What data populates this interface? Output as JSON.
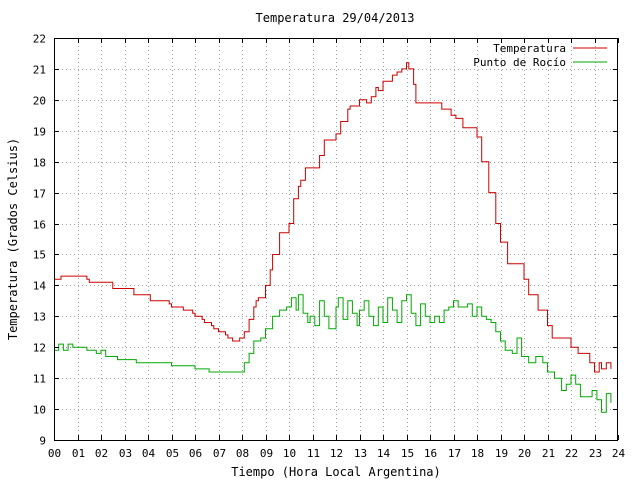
{
  "chart_data": {
    "type": "line",
    "title": "Temperatura 29/04/2013",
    "xlabel": "Tiempo (Hora Local Argentina)",
    "ylabel": "Temperatura (Grados Celsius)",
    "xlim": [
      0,
      24
    ],
    "ylim": [
      9,
      22
    ],
    "x_tick_labels": [
      "00",
      "01",
      "02",
      "03",
      "04",
      "05",
      "06",
      "07",
      "08",
      "09",
      "10",
      "11",
      "12",
      "13",
      "14",
      "15",
      "16",
      "17",
      "18",
      "19",
      "20",
      "21",
      "22",
      "23",
      "24"
    ],
    "y_ticks": [
      9,
      10,
      11,
      12,
      13,
      14,
      15,
      16,
      17,
      18,
      19,
      20,
      21,
      22
    ],
    "grid": true,
    "legend_position": "top-right",
    "series": [
      {
        "name": "Temperatura",
        "color": "#cc0000",
        "x": [
          0,
          0.3,
          0.35,
          1.4,
          1.5,
          2.4,
          2.5,
          3.3,
          3.4,
          4.1,
          4.2,
          4.9,
          5.0,
          5.4,
          5.5,
          5.9,
          6.0,
          6.3,
          6.4,
          6.7,
          6.8,
          7.0,
          7.1,
          7.3,
          7.4,
          7.5,
          7.6,
          7.9,
          8.0,
          8.1,
          8.3,
          8.5,
          8.6,
          8.7,
          9.0,
          9.2,
          9.3,
          9.6,
          9.8,
          10.0,
          10.2,
          10.4,
          10.5,
          10.7,
          11.0,
          11.1,
          11.3,
          11.5,
          11.6,
          11.9,
          12.0,
          12.2,
          12.3,
          12.5,
          12.6,
          12.9,
          13.0,
          13.3,
          13.5,
          13.7,
          13.8,
          14.0,
          14.2,
          14.4,
          14.5,
          14.6,
          14.8,
          15.0,
          15.1,
          15.3,
          15.4,
          15.5,
          15.9,
          16.0,
          16.4,
          16.5,
          16.9,
          17.1,
          17.4,
          17.5,
          17.8,
          18.0,
          18.2,
          18.5,
          18.8,
          19.0,
          19.3,
          19.5,
          19.6,
          20.0,
          20.2,
          20.5,
          20.6,
          21.0,
          21.2,
          21.5,
          21.7,
          22.0,
          22.3,
          22.4,
          22.8,
          23.0,
          23.2,
          23.3,
          23.5,
          23.7
        ],
        "values": [
          14.2,
          14.3,
          14.3,
          14.2,
          14.1,
          14.1,
          13.9,
          13.9,
          13.7,
          13.5,
          13.5,
          13.4,
          13.3,
          13.3,
          13.2,
          13.1,
          13.0,
          12.9,
          12.8,
          12.7,
          12.6,
          12.5,
          12.5,
          12.4,
          12.3,
          12.3,
          12.2,
          12.3,
          12.3,
          12.5,
          12.9,
          13.3,
          13.5,
          13.6,
          14.0,
          14.5,
          15.0,
          15.7,
          15.7,
          16.0,
          16.8,
          17.2,
          17.4,
          17.8,
          17.8,
          17.8,
          18.2,
          18.7,
          18.7,
          18.7,
          18.9,
          19.3,
          19.3,
          19.7,
          19.8,
          19.8,
          20.0,
          19.9,
          20.1,
          20.4,
          20.3,
          20.6,
          20.6,
          20.8,
          20.8,
          20.9,
          21.0,
          21.2,
          21.0,
          20.5,
          19.9,
          19.9,
          19.9,
          19.9,
          19.9,
          19.7,
          19.5,
          19.4,
          19.1,
          19.1,
          19.1,
          18.8,
          18.0,
          17.0,
          16.0,
          15.4,
          14.7,
          14.7,
          14.7,
          14.2,
          13.7,
          13.7,
          13.2,
          12.7,
          12.3,
          12.3,
          12.3,
          12.0,
          11.8,
          11.8,
          11.5,
          11.2,
          11.5,
          11.3,
          11.5,
          11.3
        ]
      },
      {
        "name": "Punto de Rocío",
        "color": "#00aa00",
        "x": [
          0,
          0.2,
          0.4,
          0.6,
          0.8,
          1.0,
          1.4,
          1.6,
          1.8,
          2.0,
          2.2,
          2.5,
          2.7,
          3.0,
          3.3,
          3.5,
          4.0,
          4.4,
          4.8,
          5.0,
          5.5,
          6.0,
          6.3,
          6.6,
          7.0,
          7.2,
          7.5,
          7.9,
          8.1,
          8.3,
          8.5,
          8.8,
          9.0,
          9.3,
          9.6,
          9.9,
          10.1,
          10.3,
          10.4,
          10.6,
          10.8,
          10.9,
          11.1,
          11.3,
          11.5,
          11.7,
          12.0,
          12.1,
          12.3,
          12.5,
          12.7,
          12.9,
          13.0,
          13.2,
          13.4,
          13.6,
          13.8,
          14.0,
          14.2,
          14.4,
          14.6,
          14.8,
          15.0,
          15.2,
          15.4,
          15.6,
          15.8,
          16.0,
          16.2,
          16.4,
          16.6,
          16.8,
          17.0,
          17.2,
          17.4,
          17.6,
          17.8,
          18.0,
          18.2,
          18.4,
          18.6,
          18.8,
          19.0,
          19.2,
          19.5,
          19.7,
          19.9,
          20.2,
          20.5,
          20.8,
          21.0,
          21.3,
          21.6,
          21.8,
          22.0,
          22.2,
          22.4,
          22.6,
          22.9,
          23.1,
          23.3,
          23.5,
          23.7
        ],
        "values": [
          11.9,
          12.1,
          11.9,
          12.1,
          12.0,
          12.0,
          11.9,
          11.9,
          11.8,
          11.9,
          11.7,
          11.7,
          11.6,
          11.6,
          11.6,
          11.5,
          11.5,
          11.5,
          11.5,
          11.4,
          11.4,
          11.3,
          11.3,
          11.2,
          11.2,
          11.2,
          11.2,
          11.2,
          11.5,
          11.8,
          12.2,
          12.3,
          12.6,
          13.0,
          13.2,
          13.3,
          13.6,
          13.2,
          13.7,
          13.1,
          12.8,
          13.0,
          12.7,
          13.5,
          13.0,
          12.6,
          13.3,
          13.6,
          12.9,
          13.5,
          13.1,
          12.7,
          13.2,
          13.5,
          13.0,
          12.7,
          13.3,
          12.8,
          13.6,
          13.2,
          12.8,
          13.5,
          13.7,
          13.1,
          12.7,
          13.4,
          13.0,
          12.8,
          13.0,
          12.8,
          13.2,
          13.3,
          13.5,
          13.3,
          13.3,
          13.4,
          13.0,
          13.3,
          13.0,
          12.9,
          12.8,
          12.5,
          12.2,
          11.9,
          11.8,
          12.3,
          11.7,
          11.5,
          11.7,
          11.5,
          11.2,
          11.0,
          10.6,
          10.8,
          11.1,
          10.8,
          10.4,
          10.4,
          10.6,
          10.3,
          9.9,
          10.5,
          10.2
        ]
      }
    ]
  }
}
